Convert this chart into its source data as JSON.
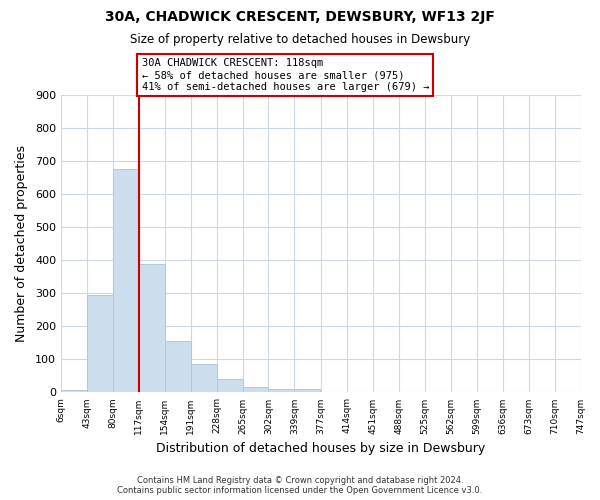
{
  "title": "30A, CHADWICK CRESCENT, DEWSBURY, WF13 2JF",
  "subtitle": "Size of property relative to detached houses in Dewsbury",
  "xlabel": "Distribution of detached houses by size in Dewsbury",
  "ylabel": "Number of detached properties",
  "bar_values": [
    8,
    295,
    675,
    390,
    155,
    85,
    40,
    15,
    10,
    10,
    0,
    0,
    0,
    0,
    0,
    0,
    0,
    0,
    0,
    0
  ],
  "bin_edges": [
    6,
    43,
    80,
    117,
    154,
    191,
    228,
    265,
    302,
    339,
    377,
    414,
    451,
    488,
    525,
    562,
    599,
    636,
    673,
    710,
    747
  ],
  "tick_labels": [
    "6sqm",
    "43sqm",
    "80sqm",
    "117sqm",
    "154sqm",
    "191sqm",
    "228sqm",
    "265sqm",
    "302sqm",
    "339sqm",
    "377sqm",
    "414sqm",
    "451sqm",
    "488sqm",
    "525sqm",
    "562sqm",
    "599sqm",
    "636sqm",
    "673sqm",
    "710sqm",
    "747sqm"
  ],
  "bar_color": "#ccdded",
  "bar_edge_color": "#b0c8dc",
  "vline_x": 117,
  "vline_color": "#cc0000",
  "annotation_title": "30A CHADWICK CRESCENT: 118sqm",
  "annotation_line1": "← 58% of detached houses are smaller (975)",
  "annotation_line2": "41% of semi-detached houses are larger (679) →",
  "annotation_box_color": "#ffffff",
  "annotation_box_edge": "#cc0000",
  "ylim": [
    0,
    900
  ],
  "yticks": [
    0,
    100,
    200,
    300,
    400,
    500,
    600,
    700,
    800,
    900
  ],
  "footer_line1": "Contains HM Land Registry data © Crown copyright and database right 2024.",
  "footer_line2": "Contains public sector information licensed under the Open Government Licence v3.0.",
  "background_color": "#ffffff",
  "grid_color": "#ccd8e4"
}
